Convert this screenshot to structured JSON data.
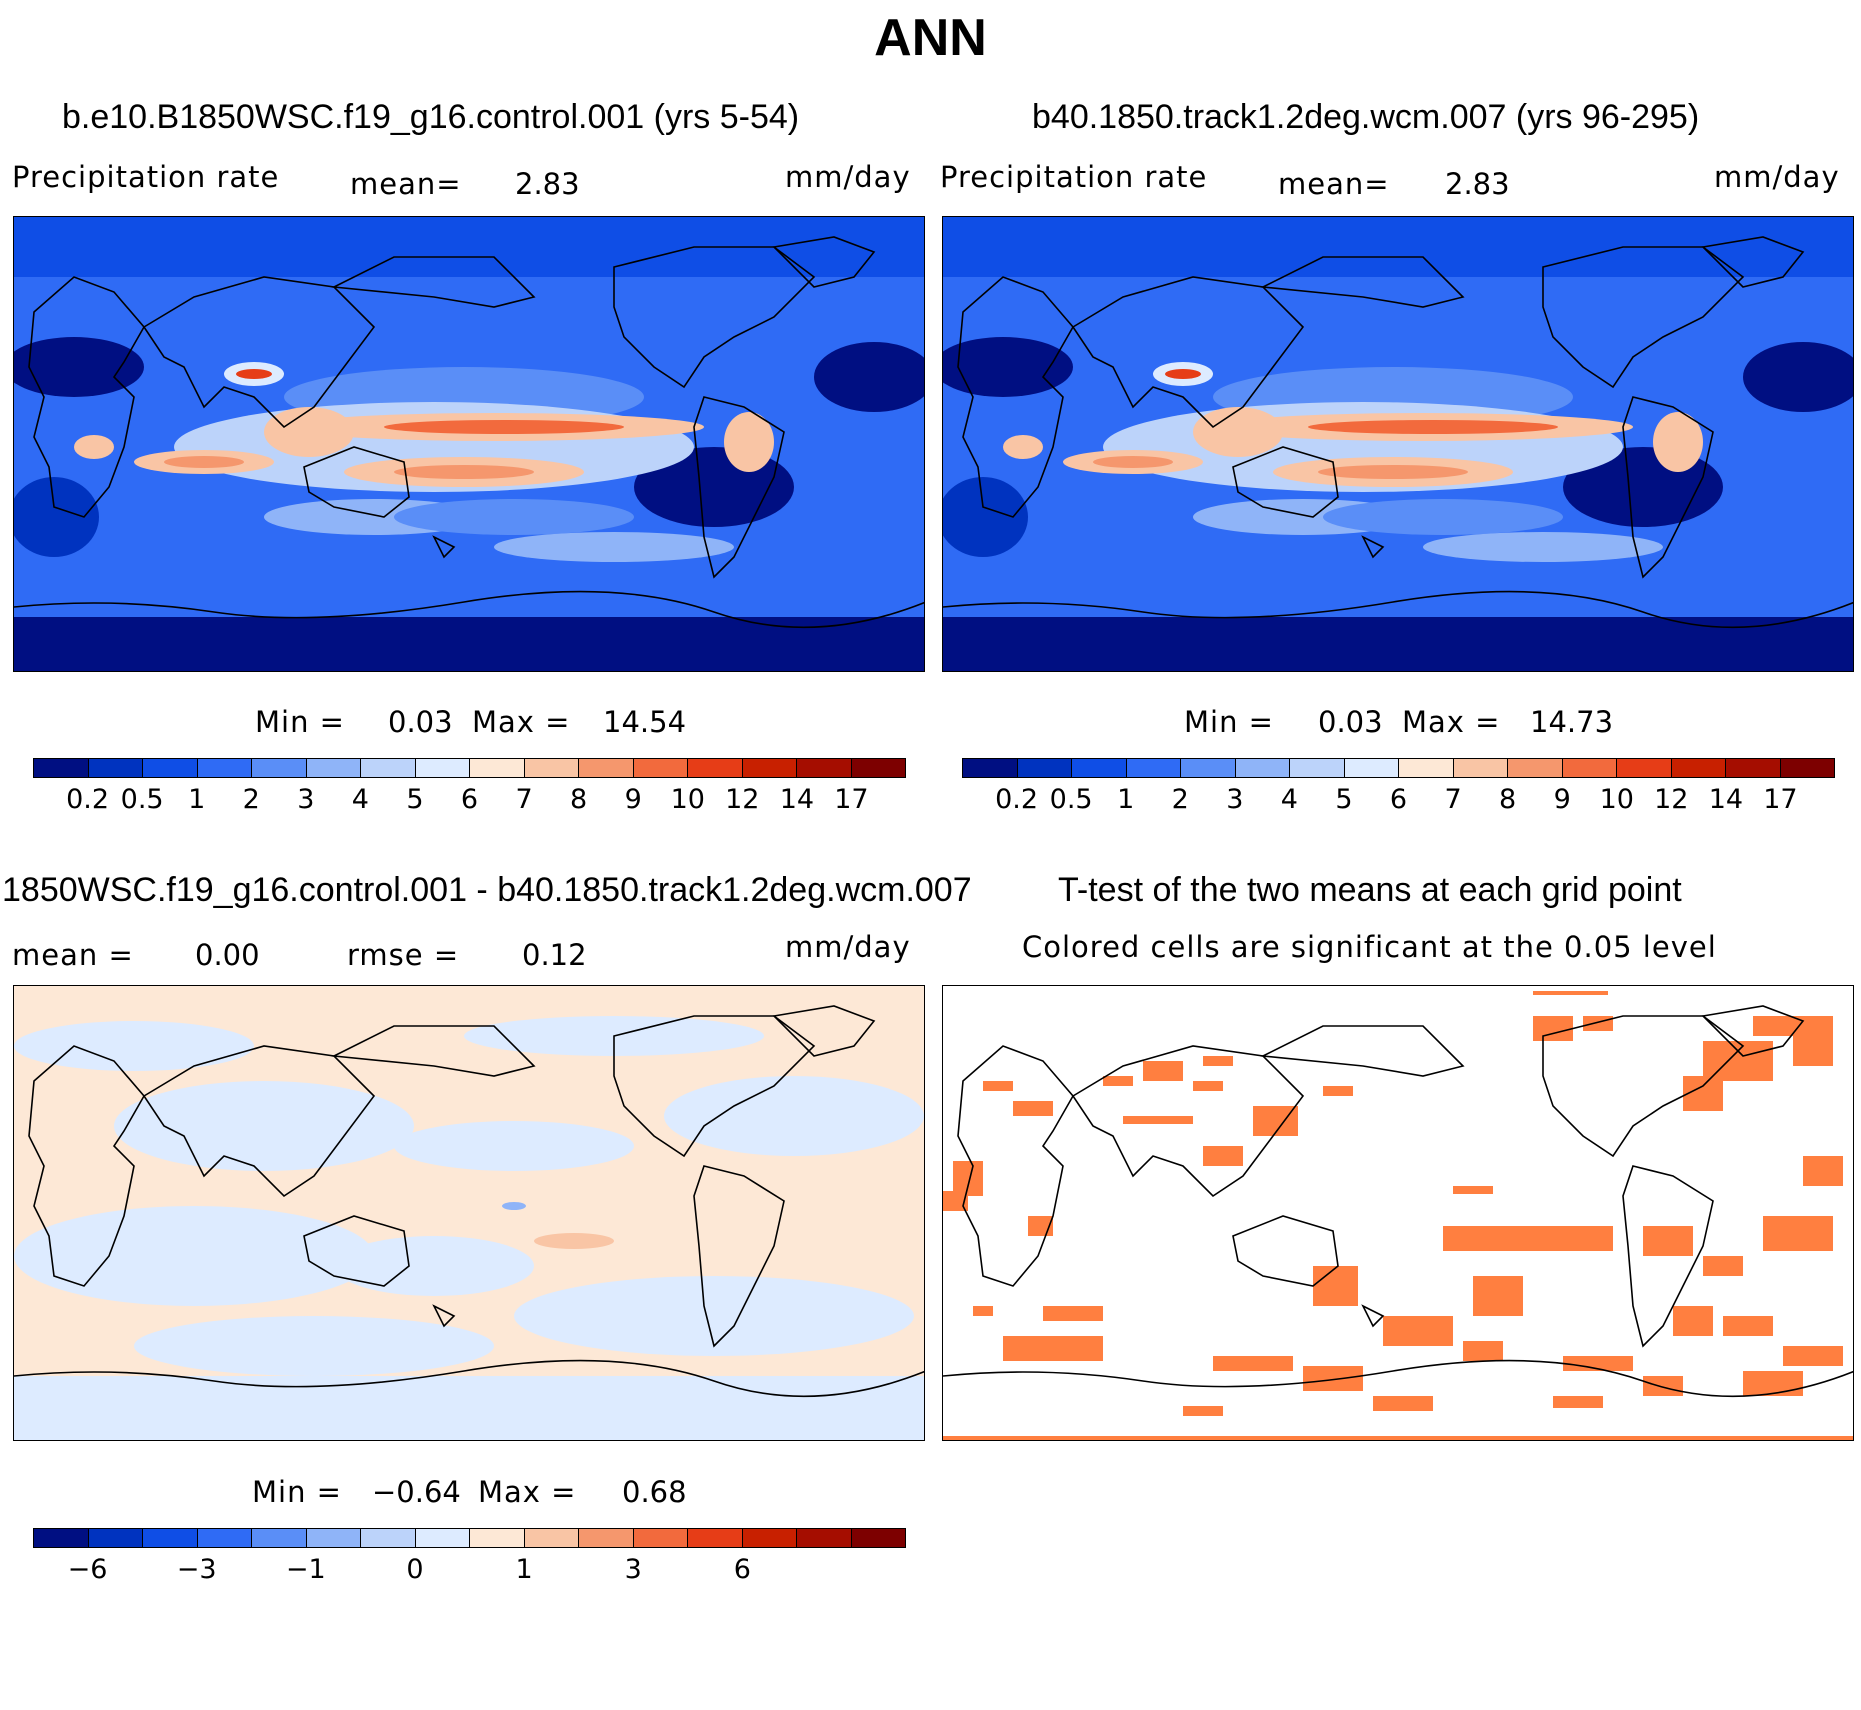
{
  "title": "ANN",
  "colors": {
    "precip_scale": [
      "#000f82",
      "#0033bf",
      "#0f4ee6",
      "#2f6bf5",
      "#5a8ef7",
      "#8fb4f8",
      "#bcd3fa",
      "#ddebff",
      "#fde8d6",
      "#f9c5a5",
      "#f5976d",
      "#f26a3d",
      "#e63d17",
      "#c82000",
      "#a50d00",
      "#7d0000"
    ],
    "diff_scale": [
      "#000f82",
      "#0033bf",
      "#0f4ee6",
      "#2f6bf5",
      "#5a8ef7",
      "#8fb4f8",
      "#bcd3fa",
      "#ddebff",
      "#fde8d6",
      "#f9c5a5",
      "#f5976d",
      "#f26a3d",
      "#e63d17",
      "#c82000",
      "#a50d00",
      "#7d0000"
    ],
    "sig_cell": "#ff7f40",
    "coast": "#000000"
  },
  "panels": {
    "p1": {
      "title": "b.e10.B1850WSC.f19_g16.control.001 (yrs 5-54)",
      "left_label": "Precipitation rate",
      "mean_label": "mean=",
      "mean_value": "2.83",
      "units": "mm/day",
      "min_label": "Min =",
      "min_value": "0.03",
      "max_label": "Max =",
      "max_value": "14.54"
    },
    "p2": {
      "title": "b40.1850.track1.2deg.wcm.007 (yrs 96-295)",
      "left_label": "Precipitation rate",
      "mean_label": "mean=",
      "mean_value": "2.83",
      "units": "mm/day",
      "min_label": "Min =",
      "min_value": "0.03",
      "max_label": "Max =",
      "max_value": "14.73"
    },
    "p3": {
      "title": "1850WSC.f19_g16.control.001 - b40.1850.track1.2deg.wcm.007",
      "mean_label": "mean =",
      "mean_value": "0.00",
      "rmse_label": "rmse =",
      "rmse_value": "0.12",
      "units": "mm/day",
      "min_label": "Min =",
      "min_value": "−0.64",
      "max_label": "Max =",
      "max_value": "0.68"
    },
    "p4": {
      "title": "T-test of the two means at each grid point",
      "subtitle": "Colored cells are significant at the 0.05 level"
    }
  },
  "colorbars": {
    "precip_ticks": [
      "0.2",
      "0.5",
      "1",
      "2",
      "3",
      "4",
      "5",
      "6",
      "7",
      "8",
      "9",
      "10",
      "12",
      "14",
      "17"
    ],
    "diff_ticks": [
      {
        "boundary": 1,
        "label": "−6"
      },
      {
        "boundary": 3,
        "label": "−3"
      },
      {
        "boundary": 5,
        "label": "−1"
      },
      {
        "boundary": 7,
        "label": "0"
      },
      {
        "boundary": 9,
        "label": "1"
      },
      {
        "boundary": 11,
        "label": "3"
      },
      {
        "boundary": 13,
        "label": "6"
      }
    ]
  }
}
